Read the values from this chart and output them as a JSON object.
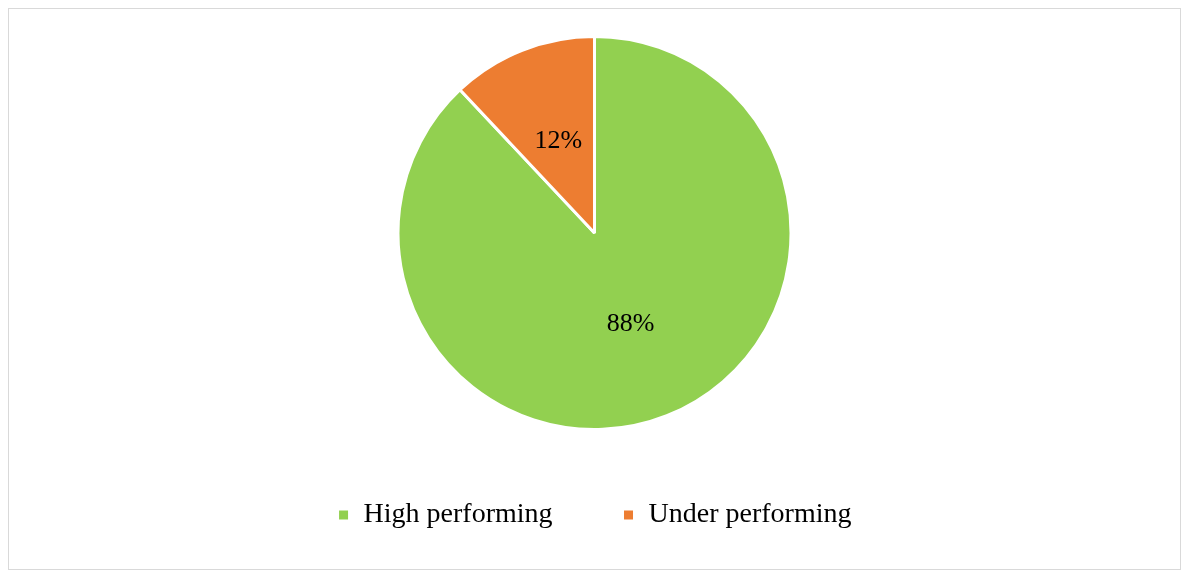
{
  "chart_data": {
    "type": "pie",
    "categories": [
      "High performing",
      "Under performing"
    ],
    "values": [
      88,
      12
    ],
    "colors": [
      "#92d050",
      "#ed7d31"
    ],
    "value_labels": [
      "88%",
      "12%"
    ],
    "legend": "bottom"
  }
}
